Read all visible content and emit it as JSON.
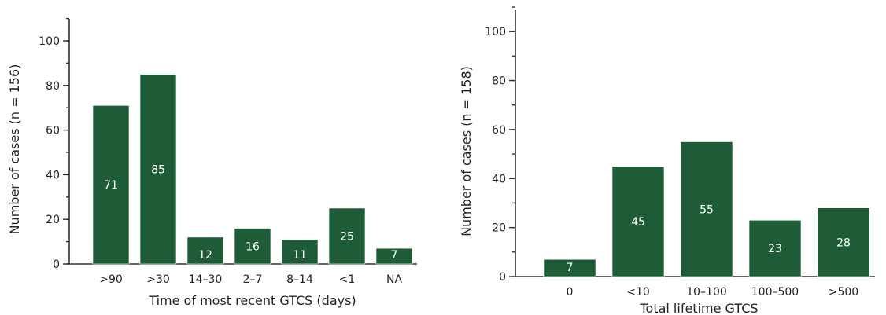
{
  "chart_data": [
    {
      "type": "bar",
      "categories": [
        ">90",
        ">30",
        "14–30",
        "2–7",
        "8–14",
        "<1",
        "NA"
      ],
      "values": [
        71,
        85,
        12,
        16,
        11,
        25,
        7
      ],
      "data_labels": [
        "71",
        "85",
        "12",
        "16",
        "11",
        "25",
        "7"
      ],
      "xlabel": "Time of most recent GTCS (days)",
      "ylabel": "Number of cases (n = 156)",
      "ylim": [
        0,
        110
      ],
      "yticks": [
        0,
        20,
        40,
        60,
        80,
        100
      ],
      "ytick_labels": [
        "0",
        "20",
        "40",
        "60",
        "80",
        "100"
      ],
      "grid": false,
      "bar_color": "#1e5c37"
    },
    {
      "type": "bar",
      "categories": [
        "0",
        "<10",
        "10–100",
        "100–500",
        ">500"
      ],
      "values": [
        7,
        45,
        55,
        23,
        28
      ],
      "data_labels": [
        "7",
        "45",
        "55",
        "23",
        "28"
      ],
      "xlabel": "Total lifetime GTCS",
      "ylabel": "Number of cases (n = 158)",
      "ylim": [
        0,
        110
      ],
      "yticks": [
        0,
        20,
        40,
        60,
        80,
        100
      ],
      "ytick_labels": [
        "0",
        "20",
        "40",
        "60",
        "80",
        "100"
      ],
      "grid": false,
      "bar_color": "#1e5c37"
    }
  ]
}
